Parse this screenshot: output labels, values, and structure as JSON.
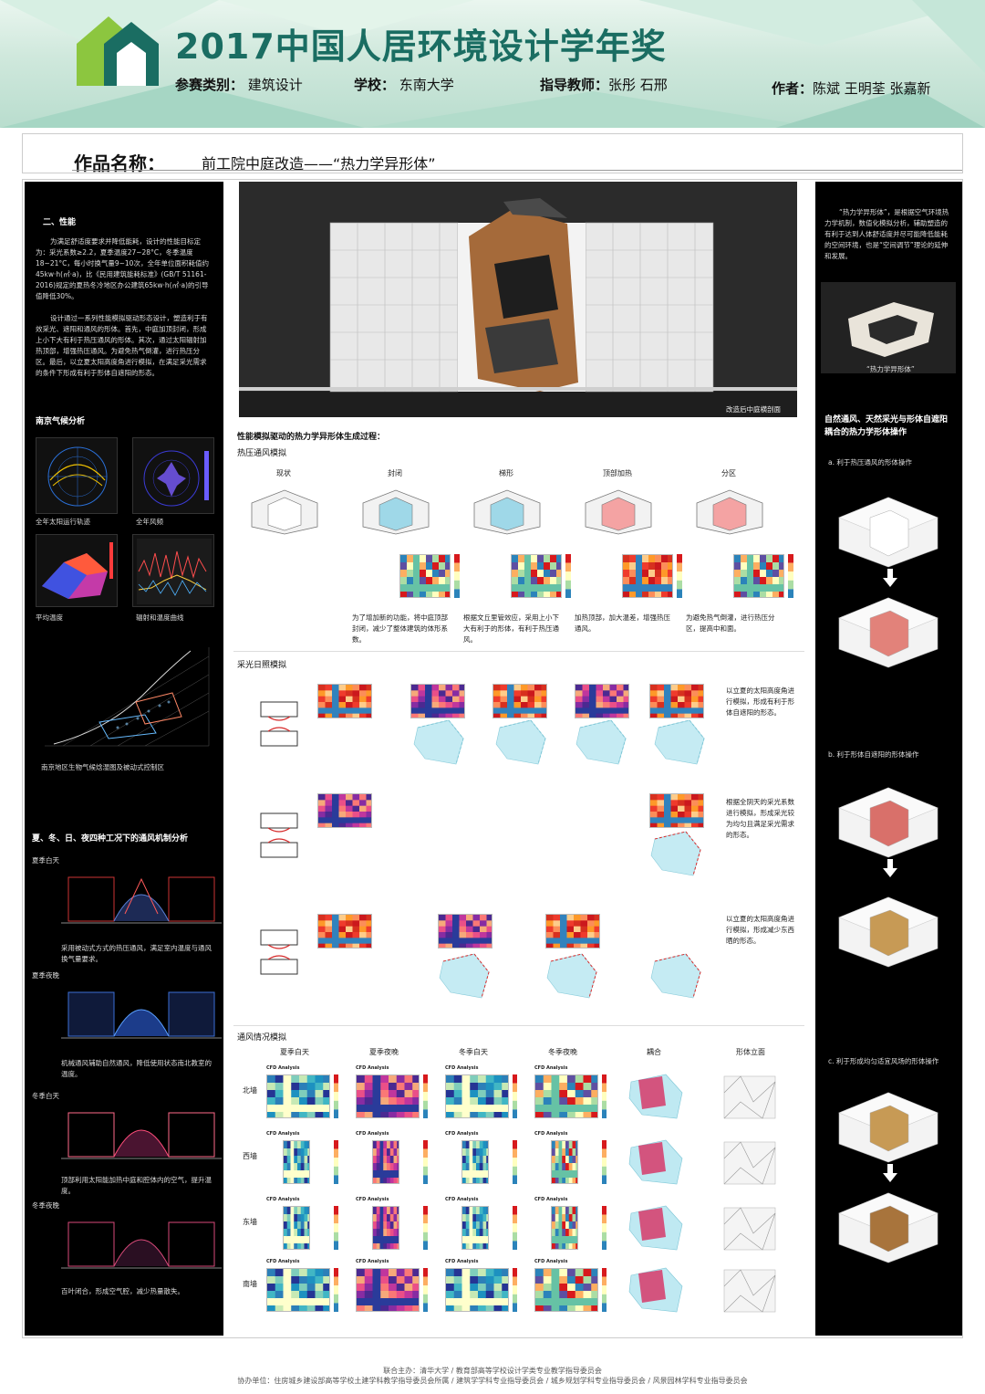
{
  "header": {
    "title": "2017中国人居环境设计学年奖",
    "category_label": "参赛类别：",
    "category_value": "建筑设计",
    "school_label": "学校：",
    "school_value": "东南大学",
    "advisor_label": "指导教师：",
    "advisor_value": "张彤 石邢",
    "author_label": "作者：",
    "author_value": "陈斌 王明荃 张嘉新",
    "work_label": "作品名称：",
    "work_value": "前工院中庭改造——“热力学异形体”"
  },
  "left": {
    "sec1_title": "二、性能",
    "sec1_p1": "为满足舒适度要求并降低能耗，设计的性能目标定为：采光系数≥2.2，夏季温度27~28°C，冬季温度18~21°C，每小时换气量9~10次，全年单位面积耗值约45kw·h(㎡·a)，比《民用建筑能耗标准》(GB/T 51161-2016)规定的夏热冬冷地区办公建筑65kw·h(㎡·a)的引导值降低30%。",
    "sec1_p2": "设计通过一系列性能模拟驱动形态设计，塑造利于有效采光、遮阳和通风的形体。首先，中庭加顶封闭，形成上小下大有利于热压通风的形体。其次，通过太阳辐射加热顶部，增强热压通风。为避免热气倒灌，进行热压分区。最后，以立夏太阳高度角进行模拟，在满足采光需求的条件下形成有利于形体自遮阳的形态。",
    "sec2_title": "南京气候分析",
    "cap_sunpath": "全年太阳运行轨迹",
    "cap_wind": "全年风频",
    "cap_temp": "平均温度",
    "cap_rad": "辐射和温度曲线",
    "cap_bioclimate": "南京地区生物气候焓湿图及被动式控制区",
    "sec3_title": "夏、冬、日、夜四种工况下的通风机制分析",
    "c1_title": "夏季白天",
    "c1_text": "采用被动式方式的热压通风，满足室内温度与通风换气量要求。",
    "c2_title": "夏季夜晚",
    "c2_text": "机械通风辅助自然通风，降低使用状态南北教室的温度。",
    "c3_title": "冬季白天",
    "c3_text": "顶部利用太阳能加热中庭和腔体内的空气，提升温度。",
    "c4_title": "冬季夜晚",
    "c4_text": "百叶闭合，形成空气腔，减少热量散失。"
  },
  "center": {
    "hero_caption": "改造后中庭横剖面",
    "process_title": "性能模拟驱动的热力学异形体生成过程：",
    "thermal_title": "热压通风模拟",
    "stages": [
      "现状",
      "封闭",
      "梯形",
      "顶部加热",
      "分区"
    ],
    "stage_notes": [
      "为了增加新的功能，将中庭顶部封闭，减少了整体建筑的体形系数。",
      "根据文丘里管效应，采用上小下大有利于的形体，有利于热压通风。",
      "加热顶部，加大温差，增强热压通风。",
      "为避免热气倒灌，进行热压分区，提高中和面。"
    ],
    "daylight_title": "采光日照模拟",
    "daylight_notes": [
      "以立夏的太阳高度角进行模拟，形成有利于形体自遮阳的形态。",
      "根据全阴天的采光系数进行模拟，形成采光较为均匀且满足采光需求的形态。",
      "以立夏的太阳高度角进行模拟，形成减少东西晒的形态。"
    ],
    "vent_title": "通风情况模拟",
    "vent_cols": [
      "夏季白天",
      "夏季夜晚",
      "冬季白天",
      "冬季夜晚",
      "耦合",
      "形体立面"
    ],
    "vent_rows": [
      "北墙",
      "西墙",
      "东墙",
      "南墙"
    ],
    "cfd_label": "CFD Analysis"
  },
  "right": {
    "intro": "“热力学异形体”，是根据空气环境热力学机制，数值化模拟分析，辅助塑造的有利于达到人体舒适度并尽可能降低能耗的空间环境，也是“空间调节”理论的延伸和发展。",
    "model_caption": "“热力学异形体”",
    "sec_title": "自然通风、天然采光与形体自遮阳耦合的热力学形体操作",
    "op_a": "a. 利于热压通风的形体操作",
    "op_b": "b. 利于形体自遮阳的形体操作",
    "op_c": "c. 利于形成均匀适宜风场的形体操作"
  },
  "footer": {
    "line1": "联合主办：清华大学 / 教育部高等学校设计学类专业教学指导委员会",
    "line2": "协办单位：住房城乡建设部高等学校土建学科教学指导委员会所属 / 建筑学学科专业指导委员会 / 城乡规划学科专业指导委员会 / 风景园林学科专业指导委员会"
  },
  "colors": {
    "brand_green": "#1a6d62",
    "accent_lime": "#8cc63f"
  }
}
